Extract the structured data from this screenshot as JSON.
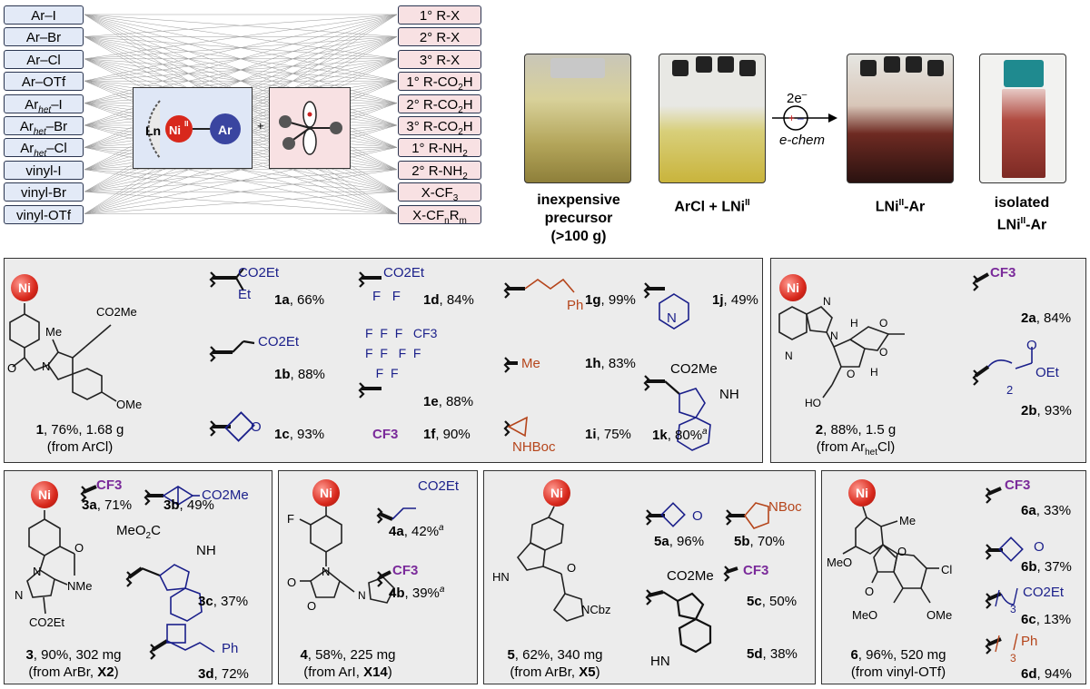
{
  "scheme": {
    "left_substrates": [
      "Ar–I",
      "Ar–Br",
      "Ar–Cl",
      "Ar–OTf",
      "Ar_het–I",
      "Ar_het–Br",
      "Ar_het–Cl",
      "vinyl-I",
      "vinyl-Br",
      "vinyl-OTf"
    ],
    "right_partners": [
      "1° R-X",
      "2° R-X",
      "3° R-X",
      "1° R-CO2H",
      "2° R-CO2H",
      "3° R-CO2H",
      "1° R-NH2",
      "2° R-NH2",
      "X-CF3",
      "X-CFnRm"
    ],
    "complex_labels": {
      "ligand": "Ln",
      "metal": "Ni",
      "ox": "II",
      "aryl": "Ar",
      "plus": "+"
    }
  },
  "photos": [
    {
      "caption_lines": [
        "inexpensive",
        "precursor",
        "(>100 g)"
      ],
      "colors": [
        "#d8d19a",
        "#9b8a3a"
      ]
    },
    {
      "caption": "ArCl + LNi",
      "sup": "II",
      "colors": [
        "#e0d890",
        "#c9b43c"
      ]
    },
    {
      "caption": "LNi",
      "sup": "II",
      "caption_tail": "-Ar",
      "colors": [
        "#6e2a22",
        "#2a1210"
      ]
    },
    {
      "caption_lines": [
        "isolated",
        "LNi"
      ],
      "sup": "II",
      "caption_tail": "-Ar",
      "colors": [
        "#b04a40",
        "#7d2a24"
      ]
    }
  ],
  "echem": {
    "electrons": "2e",
    "superscript": "–",
    "label": "e-chem"
  },
  "panels": {
    "p1": {
      "products": [
        {
          "id": "1a",
          "yield": ", 66%",
          "group": "CO2Et / Et"
        },
        {
          "id": "1b",
          "yield": ", 88%",
          "group": "CO2Et"
        },
        {
          "id": "1c",
          "yield": ", 93%",
          "group": "oxetane"
        },
        {
          "id": "1d",
          "yield": ", 84%",
          "group": "CO2Et / F F"
        },
        {
          "id": "1e",
          "yield": ", 88%",
          "group": "perfluoroalkyl"
        },
        {
          "id": "1f",
          "yield": ", 90%",
          "group": "CF3"
        },
        {
          "id": "1g",
          "yield": ", 99%",
          "group": "Ph"
        },
        {
          "id": "1h",
          "yield": ", 83%",
          "group": "Me"
        },
        {
          "id": "1i",
          "yield": ", 75%",
          "group": "NHBoc"
        },
        {
          "id": "1j",
          "yield": ", 49%",
          "group": "pyridyl"
        },
        {
          "id": "1k",
          "yield": ", 80%",
          "sup": "a",
          "group": "CO2Me / indole"
        }
      ],
      "caption_id": "1",
      "caption": ", 76%, 1.68 g",
      "source": "(from ArCl)",
      "labels": {
        "me": "Me",
        "co2me": "CO2Me",
        "ome": "OMe",
        "n": "N",
        "o": "O"
      }
    },
    "p2": {
      "products": [
        {
          "id": "2a",
          "yield": ", 84%"
        },
        {
          "id": "2b",
          "yield": ", 93%"
        }
      ],
      "caption_id": "2",
      "caption": ", 88%, 1.5 g",
      "source": "(from Ar",
      "source_sub": "het",
      "source_tail": "Cl)"
    },
    "p3": {
      "products": [
        {
          "id": "3a",
          "yield": ", 71%"
        },
        {
          "id": "3b",
          "yield": ", 49%"
        },
        {
          "id": "3c",
          "yield": ", 37%"
        },
        {
          "id": "3d",
          "yield": ", 72%"
        }
      ],
      "caption_id": "3",
      "caption": ", 90%, 302 mg",
      "source": "(from ArBr, ",
      "source_bold": "X2",
      "source_tail": ")"
    },
    "p4": {
      "products": [
        {
          "id": "4a",
          "yield": ", 42%",
          "sup": "a"
        },
        {
          "id": "4b",
          "yield": ", 39%",
          "sup": "a"
        }
      ],
      "caption_id": "4",
      "caption": ", 58%, 225 mg",
      "source": "(from ArI, ",
      "source_bold": "X14",
      "source_tail": ")"
    },
    "p5": {
      "products": [
        {
          "id": "5a",
          "yield": ", 96%"
        },
        {
          "id": "5b",
          "yield": ", 70%"
        },
        {
          "id": "5c",
          "yield": ", 50%"
        },
        {
          "id": "5d",
          "yield": ", 38%"
        }
      ],
      "caption_id": "5",
      "caption": ", 62%, 340 mg",
      "source": "(from ArBr, ",
      "source_bold": "X5",
      "source_tail": ")"
    },
    "p6": {
      "products": [
        {
          "id": "6a",
          "yield": ", 33%"
        },
        {
          "id": "6b",
          "yield": ", 37%"
        },
        {
          "id": "6c",
          "yield": ", 13%"
        },
        {
          "id": "6d",
          "yield": ", 94%"
        }
      ],
      "caption_id": "6",
      "caption": ", 96%, 520 mg",
      "source": "(from vinyl-OTf)"
    }
  },
  "text": {
    "cf3": "CF3",
    "co2et": "CO2Et",
    "co2me": "CO2Me",
    "ph": "Ph",
    "me": "Me",
    "et": "Et",
    "nhboc": "NHBoc",
    "nboc": "NBoc",
    "ncbz": "NCbz",
    "f": "F",
    "o": "O",
    "nh": "NH",
    "n": "N",
    "h": "H",
    "hn": "HN",
    "ho": "HO",
    "meo": "MeO",
    "ome": "OMe",
    "cl": "Cl",
    "nme": "NMe",
    "co2et_ester": "CO2Et",
    "ni": "Ni",
    "two": "2",
    "three": "3"
  },
  "colors": {
    "blue": "#1a1f8a",
    "purple": "#7a2a9a",
    "orange": "#b5451b",
    "ni_red": "#d8281c",
    "left_box": "#e3eaf7",
    "right_box": "#f8e1e3",
    "panel": "#ececec"
  }
}
